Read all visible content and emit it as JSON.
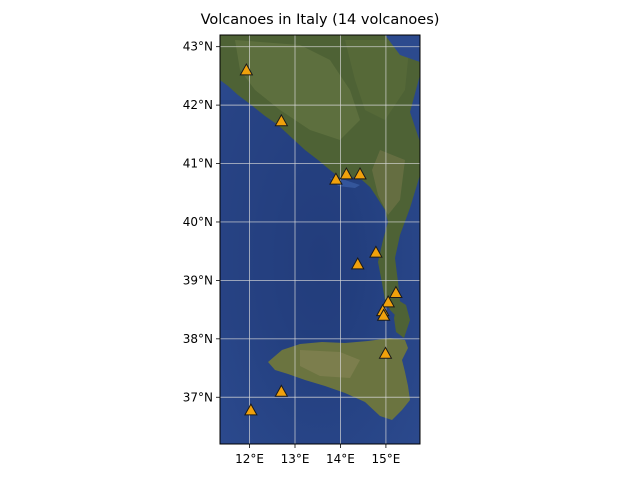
{
  "title": "Volcanoes in Italy (14 volcanoes)",
  "chart_data": {
    "type": "scatter",
    "title": "Volcanoes in Italy (14 volcanoes)",
    "xlabel": "",
    "ylabel": "",
    "xlim": [
      11.35,
      15.75
    ],
    "ylim": [
      36.2,
      43.2
    ],
    "grid": true,
    "x_ticks": [
      {
        "value": 12,
        "label": "12°E"
      },
      {
        "value": 13,
        "label": "13°E"
      },
      {
        "value": 14,
        "label": "14°E"
      },
      {
        "value": 15,
        "label": "15°E"
      }
    ],
    "y_ticks": [
      {
        "value": 37,
        "label": "37°N"
      },
      {
        "value": 38,
        "label": "38°N"
      },
      {
        "value": 39,
        "label": "39°N"
      },
      {
        "value": 40,
        "label": "40°N"
      },
      {
        "value": 41,
        "label": "41°N"
      },
      {
        "value": 42,
        "label": "42°N"
      },
      {
        "value": 43,
        "label": "43°N"
      }
    ],
    "marker": "triangle",
    "marker_color": "#f0a10c",
    "marker_edge": "#1a1a1a",
    "points": [
      {
        "lon": 11.93,
        "lat": 42.6
      },
      {
        "lon": 12.7,
        "lat": 41.73
      },
      {
        "lon": 13.9,
        "lat": 40.73
      },
      {
        "lon": 14.13,
        "lat": 40.82
      },
      {
        "lon": 14.43,
        "lat": 40.82
      },
      {
        "lon": 14.78,
        "lat": 39.48
      },
      {
        "lon": 14.38,
        "lat": 39.28
      },
      {
        "lon": 15.22,
        "lat": 38.79
      },
      {
        "lon": 15.05,
        "lat": 38.63
      },
      {
        "lon": 14.93,
        "lat": 38.48
      },
      {
        "lon": 14.95,
        "lat": 38.4
      },
      {
        "lon": 14.99,
        "lat": 37.75
      },
      {
        "lon": 12.7,
        "lat": 37.1
      },
      {
        "lon": 12.03,
        "lat": 36.78
      }
    ]
  }
}
